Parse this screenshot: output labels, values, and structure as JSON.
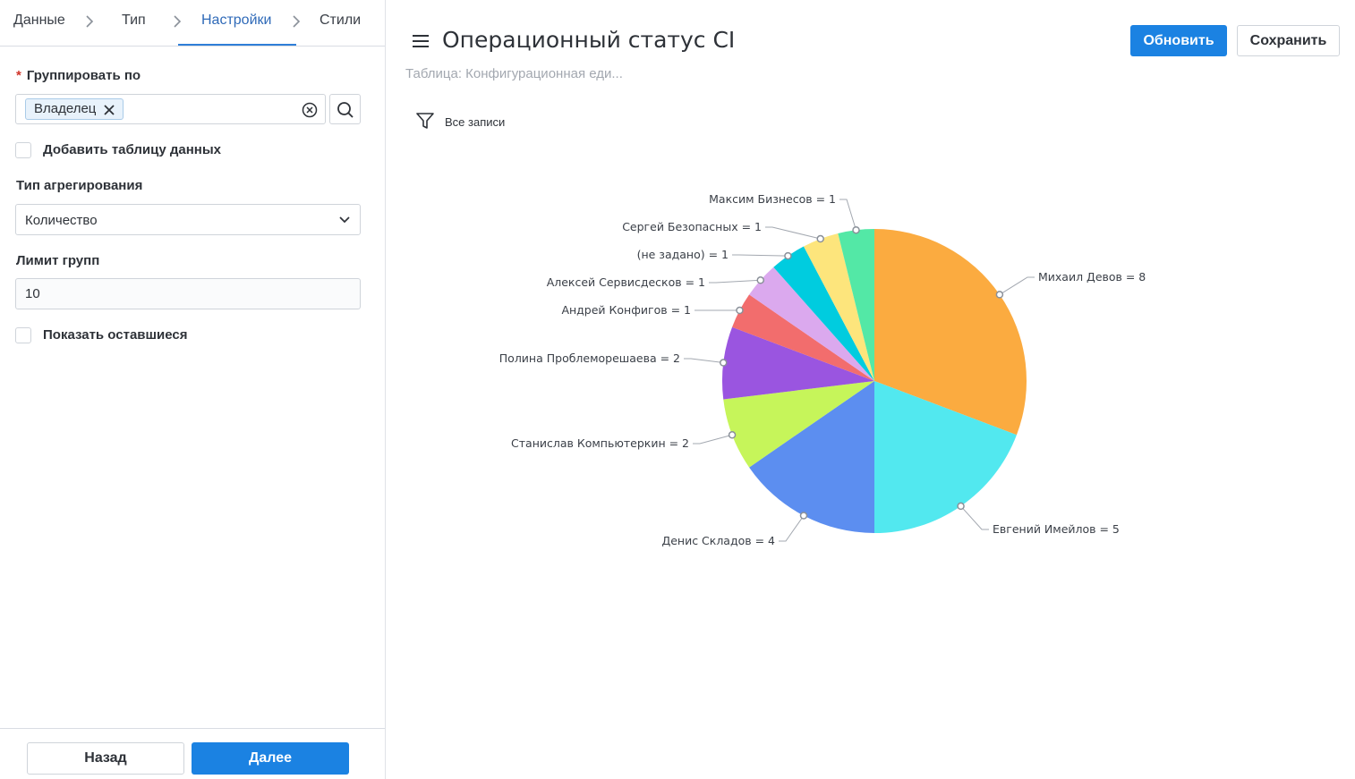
{
  "steps": [
    {
      "label": "Данные"
    },
    {
      "label": "Тип"
    },
    {
      "label": "Настройки"
    },
    {
      "label": "Стили"
    }
  ],
  "form": {
    "group_by": {
      "required_mark": "*",
      "label": "Группировать по",
      "tag": "Владелец"
    },
    "add_data_table": {
      "label": "Добавить таблицу данных",
      "checked": false
    },
    "aggregation": {
      "label": "Тип агрегирования",
      "value": "Количество"
    },
    "group_limit": {
      "label": "Лимит групп",
      "value": "10"
    },
    "show_remaining": {
      "label": "Показать оставшиеся",
      "checked": false
    }
  },
  "footer": {
    "back_label": "Назад",
    "next_label": "Далее"
  },
  "header": {
    "title": "Операционный статус CI",
    "subtitle": "Таблица: Конфигурационная еди...",
    "refresh_label": "Обновить",
    "save_label": "Сохранить",
    "filter_label": "Все записи"
  },
  "colors": {
    "accent": "#1b82e2"
  },
  "chart_data": {
    "type": "pie",
    "slices": [
      {
        "label": "Михаил Девов = 8",
        "name": "Михаил Девов",
        "value": 8,
        "color": "#fbab40"
      },
      {
        "label": "Евгений Имейлов = 5",
        "name": "Евгений Имейлов",
        "value": 5,
        "color": "#52e8ef"
      },
      {
        "label": "Денис Складов = 4",
        "name": "Денис Складов",
        "value": 4,
        "color": "#5c8ef0"
      },
      {
        "label": "Станислав Компьютеркин = 2",
        "name": "Станислав Компьютеркин",
        "value": 2,
        "color": "#c6f55a"
      },
      {
        "label": "Полина Проблеморешаева = 2",
        "name": "Полина Проблеморешаева",
        "value": 2,
        "color": "#9a55e0"
      },
      {
        "label": "Андрей Конфигов = 1",
        "name": "Андрей Конфигов",
        "value": 1,
        "color": "#f26d6d"
      },
      {
        "label": "Алексей Сервисдесков = 1",
        "name": "Алексей Сервисдесков",
        "value": 1,
        "color": "#dba9ee"
      },
      {
        "label": "(не задано) = 1",
        "name": "(не задано)",
        "value": 1,
        "color": "#00ccdf"
      },
      {
        "label": "Сергей Безопасных = 1",
        "name": "Сергей Безопасных",
        "value": 1,
        "color": "#fde57c"
      },
      {
        "label": "Максим Бизнесов = 1",
        "name": "Максим Бизнесов",
        "value": 1,
        "color": "#53e8a6"
      }
    ]
  }
}
